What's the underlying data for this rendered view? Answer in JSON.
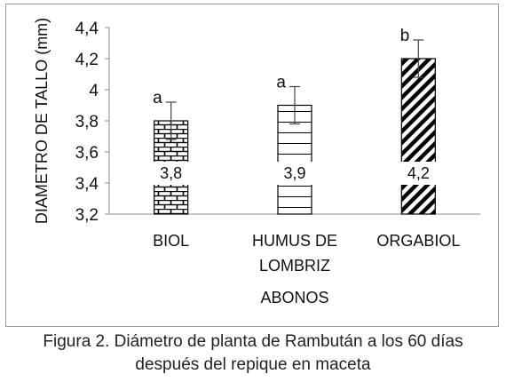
{
  "chart_data": {
    "type": "bar",
    "categories": [
      [
        "BIOL"
      ],
      [
        "HUMUS DE",
        "LOMBRIZ"
      ],
      [
        "ORGABIOL"
      ]
    ],
    "values": [
      3.8,
      3.9,
      4.2
    ],
    "error_upper": [
      3.92,
      4.02,
      4.32
    ],
    "error_lower": [
      3.68,
      3.78,
      4.08
    ],
    "data_labels": [
      "3,8",
      "3,9",
      "4,2"
    ],
    "significance_letters": [
      "a",
      "a",
      "b"
    ],
    "patterns": [
      "brick",
      "horizontal",
      "diagonal"
    ],
    "xlabel": "ABONOS",
    "ylabel": "DIAMETRO DE TALLO (mm)",
    "ylim": [
      3.2,
      4.4
    ],
    "yticks": [
      3.2,
      3.4,
      3.6,
      3.8,
      4.0,
      4.2,
      4.4
    ],
    "ytick_labels": [
      "3,2",
      "3,4",
      "3,6",
      "3,8",
      "4",
      "4,2",
      "4,4"
    ],
    "grid": false,
    "legend": "none"
  },
  "caption": {
    "line1": "Figura 2. Diámetro de planta de Rambután a los 60 días",
    "line2": "después del repique en maceta"
  },
  "colors": {
    "bar_stroke": "#000000",
    "axis": "#8c8c8c",
    "text": "#111111"
  }
}
